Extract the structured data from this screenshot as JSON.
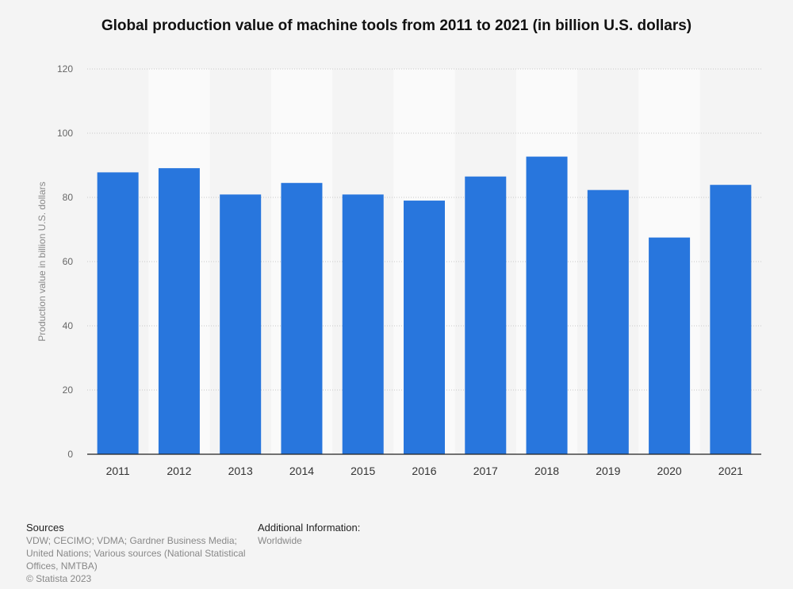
{
  "chart_data": {
    "type": "bar",
    "title": "Global production value of machine tools from 2011 to 2021 (in billion U.S. dollars)",
    "xlabel": "",
    "ylabel": "Production value in billion U.S. dollars",
    "categories": [
      "2011",
      "2012",
      "2013",
      "2014",
      "2015",
      "2016",
      "2017",
      "2018",
      "2019",
      "2020",
      "2021"
    ],
    "values": [
      87.8,
      89.1,
      80.9,
      84.5,
      80.9,
      79.0,
      86.5,
      92.7,
      82.3,
      67.5,
      83.9
    ],
    "ylim": [
      0,
      120
    ],
    "yticks": [
      "0",
      "20",
      "40",
      "60",
      "80",
      "100",
      "120"
    ],
    "grid": true,
    "bar_color": "#2876dd"
  },
  "footer": {
    "sources_heading": "Sources",
    "sources_text": "VDW; CECIMO; VDMA; Gardner Business Media; United Nations; Various sources (National Statistical Offices, NMTBA)",
    "additional_heading": "Additional Information:",
    "additional_text": "Worldwide",
    "copyright": "© Statista 2023"
  }
}
